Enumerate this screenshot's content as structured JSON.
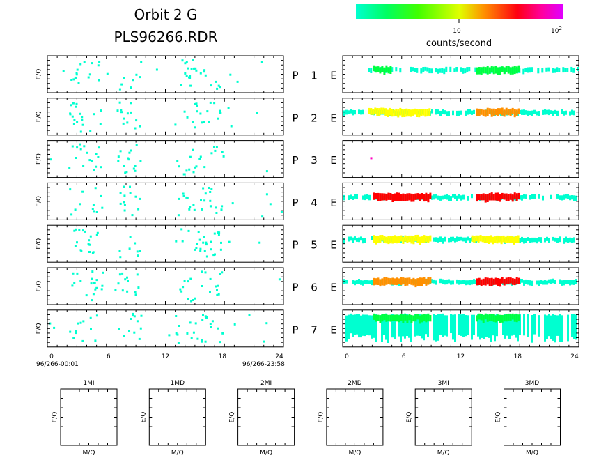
{
  "title": {
    "line1": "Orbit  2  G",
    "line2": "PLS96266.RDR"
  },
  "colorbar": {
    "label": "counts/second",
    "tick_mid": "10",
    "tick_max_base": "10",
    "tick_max_exp": "2",
    "scale": "log",
    "range": [
      1,
      100
    ],
    "colors": [
      "#00ffd0",
      "#00ff40",
      "#d8ff00",
      "#ff9000",
      "#ff0000",
      "#ff00c0",
      "#e000ff"
    ]
  },
  "colors": {
    "low": "#00ffd0",
    "mid": "#00ff40",
    "high": "#ffff00",
    "higher": "#ff9000",
    "peak": "#ff0000",
    "max": "#ff00c0"
  },
  "panels": {
    "ylabel": "E/Q",
    "rows": [
      {
        "p_label": "P",
        "num": "1",
        "e_label": "E"
      },
      {
        "p_label": "P",
        "num": "2",
        "e_label": "E"
      },
      {
        "p_label": "P",
        "num": "3",
        "e_label": "E"
      },
      {
        "p_label": "P",
        "num": "4",
        "e_label": "E"
      },
      {
        "p_label": "P",
        "num": "5",
        "e_label": "E"
      },
      {
        "p_label": "P",
        "num": "6",
        "e_label": "E"
      },
      {
        "p_label": "P",
        "num": "7",
        "e_label": "E"
      }
    ],
    "xticks": [
      "0",
      "6",
      "12",
      "18",
      "24"
    ],
    "start_time": "96/266-00:01",
    "end_time": "96/266-23:58"
  },
  "mass_panels": {
    "xlabel": "M/Q",
    "ylabel": "E/Q",
    "titles": [
      "1MI",
      "1MD",
      "2MI",
      "2MD",
      "3MI",
      "3MD"
    ]
  },
  "chart_data": {
    "type": "heatmap",
    "x_unit": "hour of day 96/266",
    "xlim": [
      0,
      24
    ],
    "left_column": "sparse low-rate counts (cyan) for P1–P7, clustered near hours 2–5, 7–9 and 13–18",
    "right_column": [
      {
        "row": "P 1",
        "bands": [
          {
            "x": [
              2.5,
              24
            ],
            "level": "low"
          },
          {
            "x": [
              3,
              5
            ],
            "level": "mid"
          },
          {
            "x": [
              13.5,
              18
            ],
            "level": "mid"
          }
        ]
      },
      {
        "row": "P 2",
        "bands": [
          {
            "x": [
              0,
              24
            ],
            "level": "low"
          },
          {
            "x": [
              2.5,
              9
            ],
            "level": "high"
          },
          {
            "x": [
              13.5,
              18
            ],
            "level": "higher"
          }
        ]
      },
      {
        "row": "P 3",
        "points": [
          {
            "x": 2.8,
            "level": "max"
          }
        ]
      },
      {
        "row": "P 4",
        "bands": [
          {
            "x": [
              0,
              24
            ],
            "level": "low"
          },
          {
            "x": [
              3,
              9
            ],
            "level": "peak"
          },
          {
            "x": [
              13.5,
              18
            ],
            "level": "peak"
          }
        ]
      },
      {
        "row": "P 5",
        "bands": [
          {
            "x": [
              0,
              24
            ],
            "level": "low"
          },
          {
            "x": [
              3,
              9
            ],
            "level": "high"
          },
          {
            "x": [
              13,
              18
            ],
            "level": "high"
          }
        ]
      },
      {
        "row": "P 6",
        "bands": [
          {
            "x": [
              0,
              24
            ],
            "level": "low"
          },
          {
            "x": [
              3,
              9
            ],
            "level": "higher"
          },
          {
            "x": [
              13.5,
              18
            ],
            "level": "peak"
          }
        ]
      },
      {
        "row": "P 7",
        "bands": [
          {
            "x": [
              0,
              24
            ],
            "level": "low"
          },
          {
            "x": [
              3,
              9
            ],
            "level": "mid"
          },
          {
            "x": [
              13.5,
              18
            ],
            "level": "mid"
          }
        ]
      }
    ]
  }
}
